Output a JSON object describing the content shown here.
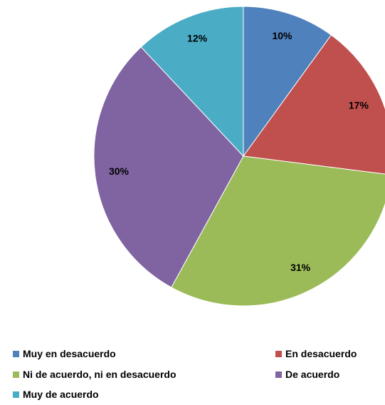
{
  "chart_data": {
    "type": "pie",
    "title": "",
    "slices": [
      {
        "label": "Muy en desacuerdo",
        "value": 10,
        "display": "10%",
        "color": "#4F81BD"
      },
      {
        "label": "En desacuerdo",
        "value": 17,
        "display": "17%",
        "color": "#C0504D"
      },
      {
        "label": "Ni de acuerdo, ni en desacuerdo",
        "value": 31,
        "display": "31%",
        "color": "#9BBB59"
      },
      {
        "label": "De acuerdo",
        "value": 30,
        "display": "30%",
        "color": "#8064A2"
      },
      {
        "label": "Muy de acuerdo",
        "value": 12,
        "display": "12%",
        "color": "#4BACC6"
      }
    ],
    "legend_position": "bottom",
    "start_angle": "top",
    "direction": "clockwise"
  }
}
